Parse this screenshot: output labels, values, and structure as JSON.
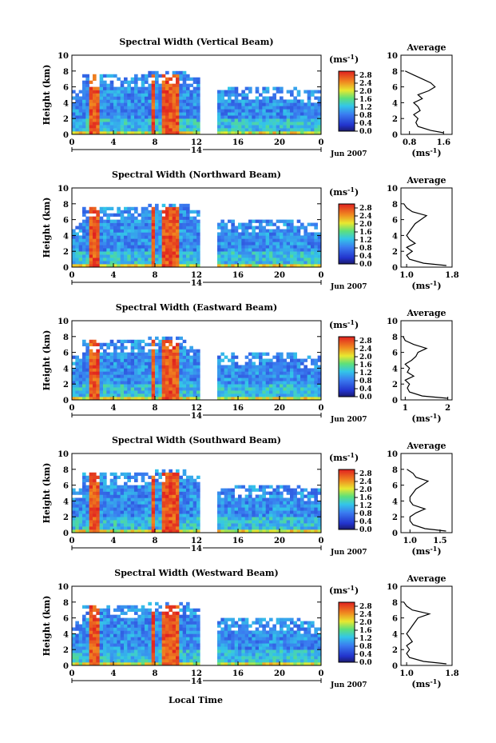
{
  "figure": {
    "x_label": "Local Time",
    "day_label": "14",
    "date_label": "Jun 2007",
    "unit_label": "(ms",
    "unit_exp": "-1",
    "unit_close": ")",
    "average_title": "Average"
  },
  "chart_data": [
    {
      "type": "heatmap",
      "title": "Spectral Width (Vertical Beam)",
      "ylabel": "Height (km)",
      "xlabel": "Local Time",
      "x_ticks": [
        "0",
        "4",
        "8",
        "12",
        "16",
        "20",
        "0"
      ],
      "y_ticks": [
        "0",
        "2",
        "4",
        "6",
        "8",
        "10"
      ],
      "xlim": [
        0,
        24
      ],
      "ylim": [
        0,
        10
      ],
      "colorbar_ticks": [
        "0.0",
        "0.4",
        "0.8",
        "1.2",
        "1.6",
        "2.0",
        "2.4",
        "2.8"
      ],
      "colorbar_range": [
        0,
        3.0
      ],
      "data_gap_hours": [
        12.3,
        14.0
      ],
      "average_profile": {
        "xlabel": "(ms-1)",
        "x_ticks": [
          "0.8",
          "1.6"
        ],
        "xlim": [
          0.6,
          1.8
        ],
        "ylim": [
          0,
          10
        ],
        "height_km": [
          0.2,
          0.5,
          1.0,
          1.5,
          2.0,
          2.5,
          3.0,
          3.5,
          4.0,
          4.5,
          5.0,
          5.5,
          6.0,
          6.5,
          7.0,
          7.5,
          8.0
        ],
        "width": [
          1.6,
          1.3,
          1.0,
          0.95,
          1.0,
          0.9,
          1.05,
          1.0,
          0.9,
          1.1,
          1.0,
          1.25,
          1.4,
          1.3,
          1.1,
          0.9,
          0.7
        ]
      }
    },
    {
      "type": "heatmap",
      "title": "Spectral Width (Northward Beam)",
      "ylabel": "Height (km)",
      "xlabel": "Local Time",
      "x_ticks": [
        "0",
        "4",
        "8",
        "12",
        "16",
        "20",
        "0"
      ],
      "y_ticks": [
        "0",
        "2",
        "4",
        "6",
        "8",
        "10"
      ],
      "xlim": [
        0,
        24
      ],
      "ylim": [
        0,
        10
      ],
      "colorbar_ticks": [
        "0.0",
        "0.4",
        "0.8",
        "1.2",
        "1.6",
        "2.0",
        "2.4",
        "2.8"
      ],
      "colorbar_range": [
        0,
        3.0
      ],
      "data_gap_hours": [
        12.3,
        14.0
      ],
      "average_profile": {
        "xlabel": "(ms-1)",
        "x_ticks": [
          "1.0",
          "1.8"
        ],
        "xlim": [
          0.9,
          1.8
        ],
        "ylim": [
          0,
          10
        ],
        "height_km": [
          0.2,
          0.5,
          1.0,
          1.5,
          2.0,
          2.5,
          3.0,
          3.5,
          4.0,
          4.5,
          5.0,
          5.5,
          6.0,
          6.5,
          7.0,
          7.5,
          8.0
        ],
        "width": [
          1.7,
          1.3,
          1.05,
          1.0,
          1.1,
          1.0,
          1.15,
          1.05,
          1.0,
          1.05,
          1.1,
          1.15,
          1.25,
          1.35,
          1.1,
          1.0,
          0.95
        ]
      }
    },
    {
      "type": "heatmap",
      "title": "Spectral Width (Eastward Beam)",
      "ylabel": "Height (km)",
      "xlabel": "Local Time",
      "x_ticks": [
        "0",
        "4",
        "8",
        "12",
        "16",
        "20",
        "0"
      ],
      "y_ticks": [
        "0",
        "2",
        "4",
        "6",
        "8",
        "10"
      ],
      "xlim": [
        0,
        24
      ],
      "ylim": [
        0,
        10
      ],
      "colorbar_ticks": [
        "0.0",
        "0.4",
        "0.8",
        "1.2",
        "1.6",
        "2.0",
        "2.4",
        "2.8"
      ],
      "colorbar_range": [
        0,
        3.0
      ],
      "data_gap_hours": [
        12.3,
        14.0
      ],
      "average_profile": {
        "xlabel": "(ms-1)",
        "x_ticks": [
          "1",
          "2"
        ],
        "xlim": [
          0.9,
          2.1
        ],
        "ylim": [
          0,
          10
        ],
        "height_km": [
          0.2,
          0.5,
          1.0,
          1.5,
          2.0,
          2.5,
          3.0,
          3.5,
          4.0,
          4.5,
          5.0,
          5.5,
          6.0,
          6.5,
          7.0,
          7.5,
          8.0
        ],
        "width": [
          2.0,
          1.4,
          1.1,
          1.05,
          1.1,
          1.0,
          1.2,
          1.05,
          1.1,
          1.0,
          1.15,
          1.25,
          1.3,
          1.5,
          1.2,
          1.0,
          0.95
        ]
      }
    },
    {
      "type": "heatmap",
      "title": "Spectral Width (Southward Beam)",
      "ylabel": "Height (km)",
      "xlabel": "Local Time",
      "x_ticks": [
        "0",
        "4",
        "8",
        "12",
        "16",
        "20",
        "0"
      ],
      "y_ticks": [
        "0",
        "2",
        "4",
        "6",
        "8",
        "10"
      ],
      "xlim": [
        0,
        24
      ],
      "ylim": [
        0,
        10
      ],
      "colorbar_ticks": [
        "0.0",
        "0.4",
        "0.8",
        "1.2",
        "1.6",
        "2.0",
        "2.4",
        "2.8"
      ],
      "colorbar_range": [
        0,
        3.0
      ],
      "data_gap_hours": [
        12.3,
        14.0
      ],
      "average_profile": {
        "xlabel": "(ms-1)",
        "x_ticks": [
          "1.0",
          "1.5"
        ],
        "xlim": [
          0.85,
          1.7
        ],
        "ylim": [
          0,
          10
        ],
        "height_km": [
          0.2,
          0.5,
          1.0,
          1.5,
          2.0,
          2.5,
          3.0,
          3.5,
          4.0,
          4.5,
          5.0,
          5.5,
          6.0,
          6.5,
          7.0,
          7.5,
          8.0
        ],
        "width": [
          1.6,
          1.25,
          1.05,
          1.0,
          1.0,
          1.1,
          1.25,
          1.05,
          1.0,
          1.0,
          1.05,
          1.1,
          1.2,
          1.3,
          1.1,
          1.05,
          0.95
        ]
      }
    },
    {
      "type": "heatmap",
      "title": "Spectral Width (Westward Beam)",
      "ylabel": "Height (km)",
      "xlabel": "Local Time",
      "x_ticks": [
        "0",
        "4",
        "8",
        "12",
        "16",
        "20",
        "0"
      ],
      "y_ticks": [
        "0",
        "2",
        "4",
        "6",
        "8",
        "10"
      ],
      "xlim": [
        0,
        24
      ],
      "ylim": [
        0,
        10
      ],
      "colorbar_ticks": [
        "0.0",
        "0.4",
        "0.8",
        "1.2",
        "1.6",
        "2.0",
        "2.4",
        "2.8"
      ],
      "colorbar_range": [
        0,
        3.0
      ],
      "data_gap_hours": [
        12.3,
        14.0
      ],
      "average_profile": {
        "xlabel": "(ms-1)",
        "x_ticks": [
          "1.0",
          "1.8"
        ],
        "xlim": [
          0.9,
          1.8
        ],
        "ylim": [
          0,
          10
        ],
        "height_km": [
          0.2,
          0.5,
          1.0,
          1.5,
          2.0,
          2.5,
          3.0,
          3.5,
          4.0,
          4.5,
          5.0,
          5.5,
          6.0,
          6.5,
          7.0,
          7.5,
          8.0
        ],
        "width": [
          1.7,
          1.3,
          1.05,
          1.0,
          1.05,
          1.0,
          1.1,
          1.05,
          1.0,
          1.05,
          1.1,
          1.15,
          1.2,
          1.4,
          1.1,
          1.0,
          0.95
        ]
      }
    }
  ]
}
